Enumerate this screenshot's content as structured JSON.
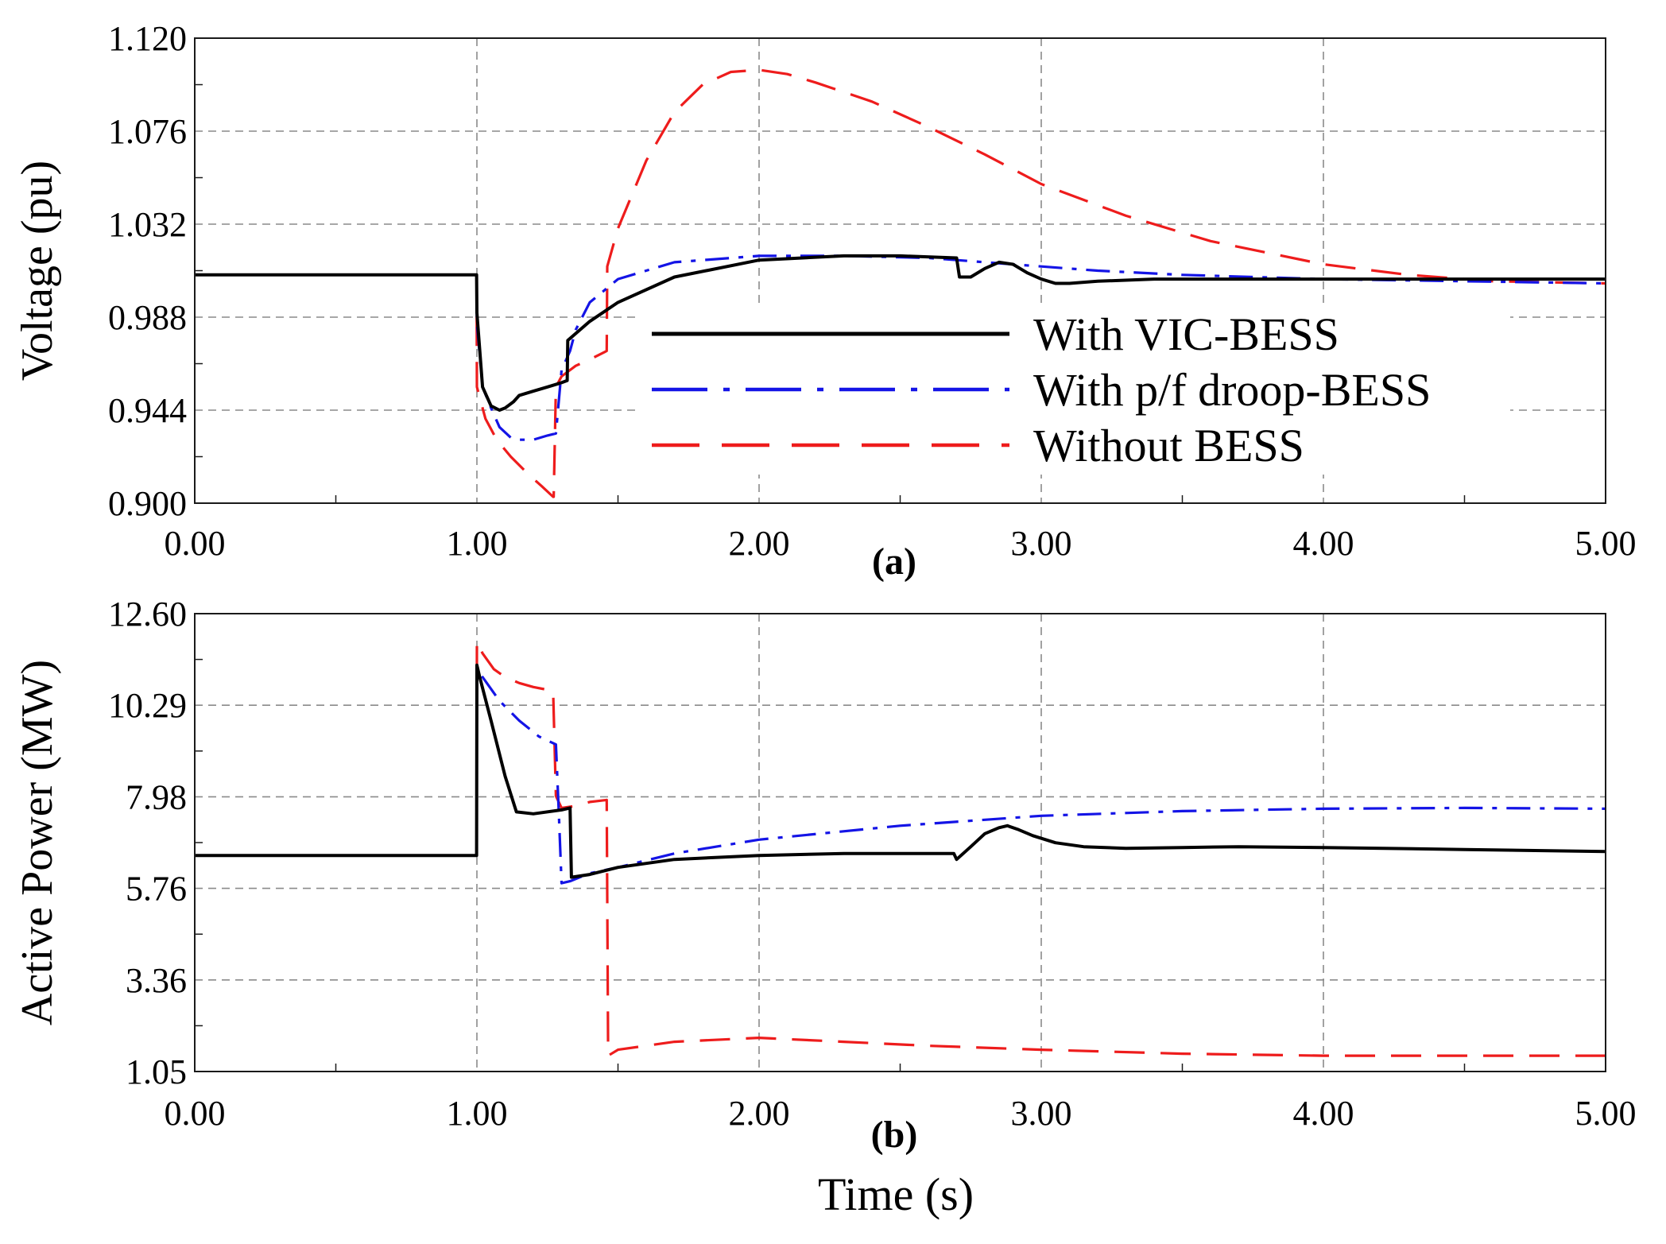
{
  "chart_data": [
    {
      "type": "line",
      "panel_label": "(a)",
      "ylabel": "Voltage (pu)",
      "xlabel": "",
      "xlim": [
        0,
        5
      ],
      "ylim": [
        0.9,
        1.12
      ],
      "x_ticks": [
        "0.00",
        "1.00",
        "2.00",
        "3.00",
        "4.00",
        "5.00"
      ],
      "y_ticks": [
        "0.900",
        "0.944",
        "0.988",
        "1.032",
        "1.076",
        "1.120"
      ],
      "grid": true,
      "legend": {
        "placement": "center-right",
        "entries": [
          "With VIC-BESS",
          "With p/f droop-BESS",
          "Without BESS"
        ]
      },
      "series": [
        {
          "name": "With VIC-BESS",
          "color": "#000000",
          "style": "solid",
          "x": [
            0,
            0.999,
            1.0,
            1.02,
            1.05,
            1.08,
            1.1,
            1.13,
            1.15,
            1.2,
            1.25,
            1.3,
            1.32,
            1.322,
            1.4,
            1.5,
            1.7,
            2.0,
            2.3,
            2.5,
            2.7,
            2.71,
            2.75,
            2.8,
            2.85,
            2.9,
            2.95,
            3.0,
            3.05,
            3.1,
            3.2,
            3.4,
            3.7,
            4.0,
            4.5,
            5.0
          ],
          "y": [
            1.008,
            1.008,
            0.99,
            0.955,
            0.946,
            0.944,
            0.945,
            0.948,
            0.951,
            0.953,
            0.955,
            0.957,
            0.958,
            0.977,
            0.986,
            0.995,
            1.007,
            1.015,
            1.017,
            1.017,
            1.016,
            1.007,
            1.007,
            1.011,
            1.014,
            1.013,
            1.009,
            1.006,
            1.004,
            1.004,
            1.005,
            1.006,
            1.006,
            1.006,
            1.006,
            1.006
          ]
        },
        {
          "name": "With p/f droop-BESS",
          "color": "#1414e6",
          "style": "dashdot",
          "x": [
            0,
            0.999,
            1.0,
            1.02,
            1.05,
            1.08,
            1.12,
            1.15,
            1.2,
            1.25,
            1.28,
            1.3,
            1.33,
            1.35,
            1.4,
            1.5,
            1.7,
            2.0,
            2.3,
            2.6,
            2.8,
            3.0,
            3.2,
            3.5,
            4.0,
            4.5,
            5.0
          ],
          "y": [
            1.008,
            1.008,
            0.985,
            0.955,
            0.945,
            0.936,
            0.931,
            0.93,
            0.93,
            0.932,
            0.933,
            0.963,
            0.972,
            0.982,
            0.995,
            1.006,
            1.014,
            1.017,
            1.017,
            1.016,
            1.014,
            1.012,
            1.01,
            1.008,
            1.006,
            1.005,
            1.004
          ]
        },
        {
          "name": "Without BESS",
          "color": "#ee1c1c",
          "style": "dashed",
          "x": [
            0,
            0.999,
            1.0,
            1.03,
            1.07,
            1.12,
            1.18,
            1.23,
            1.27,
            1.272,
            1.28,
            1.3,
            1.35,
            1.4,
            1.46,
            1.462,
            1.5,
            1.6,
            1.7,
            1.8,
            1.9,
            2.0,
            2.1,
            2.2,
            2.4,
            2.6,
            2.8,
            3.0,
            3.3,
            3.6,
            4.0,
            4.3,
            4.6,
            5.0
          ],
          "y": [
            1.008,
            1.008,
            0.955,
            0.94,
            0.93,
            0.922,
            0.914,
            0.908,
            0.903,
            0.903,
            0.955,
            0.96,
            0.965,
            0.968,
            0.972,
            1.012,
            1.03,
            1.062,
            1.085,
            1.098,
            1.104,
            1.105,
            1.103,
            1.099,
            1.09,
            1.078,
            1.065,
            1.051,
            1.036,
            1.024,
            1.013,
            1.008,
            1.005,
            1.004
          ]
        }
      ]
    },
    {
      "type": "line",
      "panel_label": "(b)",
      "ylabel": "Active Power (MW)",
      "xlabel": "Time (s)",
      "xlim": [
        0,
        5
      ],
      "ylim": [
        1.05,
        12.6
      ],
      "x_ticks": [
        "0.00",
        "1.00",
        "2.00",
        "3.00",
        "4.00",
        "5.00"
      ],
      "y_ticks": [
        "1.05",
        "3.36",
        "5.76",
        "7.98",
        "10.29",
        "12.60"
      ],
      "grid": true,
      "series": [
        {
          "name": "With VIC-BESS",
          "color": "#000000",
          "style": "solid",
          "x": [
            0,
            0.999,
            1.0,
            1.01,
            1.05,
            1.1,
            1.14,
            1.2,
            1.3,
            1.33,
            1.335,
            1.4,
            1.5,
            1.7,
            2.0,
            2.3,
            2.5,
            2.69,
            2.7,
            2.75,
            2.8,
            2.85,
            2.88,
            2.92,
            2.97,
            3.05,
            3.15,
            3.3,
            3.5,
            3.7,
            4.0,
            4.5,
            5.0
          ],
          "y": [
            6.5,
            6.5,
            11.3,
            11.0,
            9.9,
            8.5,
            7.6,
            7.55,
            7.65,
            7.7,
            5.95,
            6.02,
            6.2,
            6.4,
            6.5,
            6.55,
            6.55,
            6.55,
            6.4,
            6.72,
            7.05,
            7.2,
            7.25,
            7.15,
            7.0,
            6.82,
            6.72,
            6.68,
            6.7,
            6.72,
            6.7,
            6.65,
            6.6
          ]
        },
        {
          "name": "With p/f droop-BESS",
          "color": "#1414e6",
          "style": "dashdot",
          "x": [
            0,
            0.999,
            1.0,
            1.03,
            1.08,
            1.15,
            1.22,
            1.28,
            1.29,
            1.3,
            1.33,
            1.4,
            1.5,
            1.7,
            2.0,
            2.5,
            3.0,
            3.5,
            4.0,
            4.5,
            5.0
          ],
          "y": [
            6.5,
            6.5,
            11.2,
            10.9,
            10.4,
            9.9,
            9.5,
            9.3,
            7.6,
            5.8,
            5.85,
            6.05,
            6.2,
            6.55,
            6.9,
            7.25,
            7.5,
            7.62,
            7.68,
            7.7,
            7.68
          ]
        },
        {
          "name": "Without BESS",
          "color": "#ee1c1c",
          "style": "dashed",
          "x": [
            0,
            0.999,
            1.0,
            1.02,
            1.06,
            1.1,
            1.15,
            1.2,
            1.27,
            1.28,
            1.3,
            1.35,
            1.4,
            1.46,
            1.465,
            1.5,
            1.7,
            2.0,
            2.3,
            2.6,
            3.0,
            3.5,
            4.0,
            4.5,
            5.0
          ],
          "y": [
            6.5,
            6.5,
            11.9,
            11.6,
            11.2,
            11.0,
            10.85,
            10.75,
            10.65,
            8.0,
            7.7,
            7.75,
            7.85,
            7.9,
            1.45,
            1.6,
            1.8,
            1.9,
            1.8,
            1.7,
            1.6,
            1.5,
            1.45,
            1.45,
            1.45
          ]
        }
      ]
    }
  ]
}
